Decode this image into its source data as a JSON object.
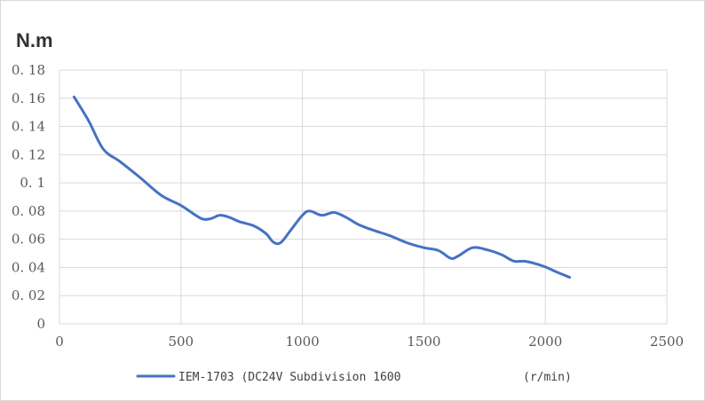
{
  "chart_data": {
    "type": "line",
    "y_unit_label": "N.m",
    "x_unit_label": "(r/min)",
    "xlim": [
      0,
      2500
    ],
    "ylim": [
      0,
      0.18
    ],
    "x_ticks": [
      0,
      500,
      1000,
      1500,
      2000,
      2500
    ],
    "x_tick_labels": [
      "0",
      "500",
      "1000",
      "1500",
      "2000",
      "2500"
    ],
    "y_ticks": [
      0,
      0.02,
      0.04,
      0.06,
      0.08,
      0.1,
      0.12,
      0.14,
      0.16,
      0.18
    ],
    "y_tick_labels": [
      "0",
      "0. 02",
      "0. 04",
      "0. 06",
      "0. 08",
      "0. 1",
      "0. 12",
      "0. 14",
      "0. 16",
      "0. 18"
    ],
    "grid": true,
    "legend_position": "bottom",
    "series": [
      {
        "name": "IEM-1703 (DC24V Subdivision 1600",
        "color": "#4472c4",
        "x": [
          60,
          120,
          180,
          250,
          330,
          420,
          500,
          580,
          620,
          660,
          700,
          740,
          800,
          850,
          880,
          910,
          950,
          1000,
          1030,
          1080,
          1130,
          1180,
          1230,
          1290,
          1360,
          1430,
          1500,
          1560,
          1610,
          1640,
          1700,
          1760,
          1820,
          1870,
          1920,
          1990,
          2050,
          2100
        ],
        "y": [
          0.161,
          0.144,
          0.124,
          0.115,
          0.104,
          0.091,
          0.084,
          0.075,
          0.0745,
          0.077,
          0.0755,
          0.0725,
          0.0695,
          0.064,
          0.058,
          0.0575,
          0.066,
          0.077,
          0.08,
          0.077,
          0.079,
          0.0755,
          0.0705,
          0.0665,
          0.0625,
          0.0575,
          0.054,
          0.052,
          0.0465,
          0.048,
          0.054,
          0.0525,
          0.049,
          0.0445,
          0.0443,
          0.041,
          0.0365,
          0.033
        ]
      }
    ]
  }
}
